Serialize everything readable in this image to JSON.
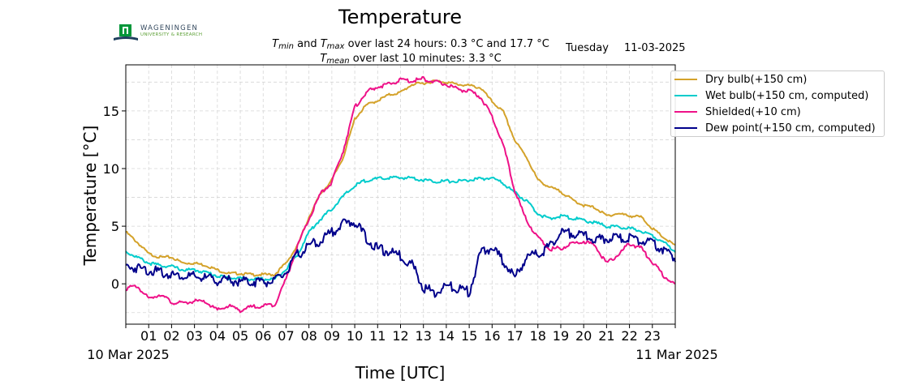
{
  "header": {
    "title": "Temperature",
    "stats_line1_min_label": "T",
    "stats_line1_min_sub": "min",
    "stats_line1_and": " and ",
    "stats_line1_max_label": "T",
    "stats_line1_max_sub": "max",
    "stats_line1_text": " over last 24 hours: 0.3 °C and 17.7 °C",
    "stats_line2_label": "T",
    "stats_line2_sub": "mean",
    "stats_line2_text": " over last 10 minutes: 3.3 °C",
    "weekday": "Tuesday",
    "date": "11-03-2025"
  },
  "logo": {
    "line1": "WAGENINGEN",
    "line2": "UNIVERSITY & RESEARCH",
    "icon": "wur-logo-icon",
    "colors": {
      "green": "#009639",
      "blue": "#1f3f5e"
    }
  },
  "chart_data": {
    "type": "line",
    "title": "Temperature",
    "xlabel": "Time [UTC]",
    "ylabel": "Temperature [°C]",
    "xlim": [
      0,
      24
    ],
    "ylim": [
      -3.5,
      19
    ],
    "yticks": [
      0,
      5,
      10,
      15
    ],
    "xtick_labels": [
      "01",
      "02",
      "03",
      "04",
      "05",
      "06",
      "07",
      "08",
      "09",
      "10",
      "11",
      "12",
      "13",
      "14",
      "15",
      "16",
      "17",
      "18",
      "19",
      "20",
      "21",
      "22",
      "23"
    ],
    "xdate_left": "10 Mar 2025",
    "xdate_right": "11 Mar 2025",
    "grid": true,
    "legend_position": "outside-top-right",
    "x": [
      0,
      0.5,
      1,
      1.5,
      2,
      2.5,
      3,
      3.5,
      4,
      4.5,
      5,
      5.5,
      6,
      6.5,
      7,
      7.5,
      8,
      8.5,
      9,
      9.5,
      10,
      10.5,
      11,
      11.5,
      12,
      12.5,
      13,
      13.5,
      14,
      14.5,
      15,
      15.5,
      16,
      16.5,
      17,
      17.5,
      18,
      18.5,
      19,
      19.5,
      20,
      20.5,
      21,
      21.5,
      22,
      22.5,
      23,
      23.5,
      24
    ],
    "series": [
      {
        "name": "Dry bulb(+150 cm)",
        "color": "#d4a22a",
        "values": [
          4.5,
          3.6,
          2.6,
          2.3,
          2.3,
          1.8,
          1.8,
          1.6,
          1.2,
          0.9,
          0.9,
          0.8,
          0.8,
          0.8,
          1.8,
          3.3,
          5.8,
          7.8,
          9.0,
          11.0,
          14.3,
          15.5,
          15.9,
          16.4,
          16.6,
          17.3,
          17.4,
          17.6,
          17.5,
          17.3,
          17.2,
          17.0,
          15.8,
          14.9,
          12.4,
          11.0,
          9.0,
          8.4,
          8.0,
          7.3,
          6.8,
          6.6,
          5.9,
          6.1,
          5.9,
          5.8,
          4.8,
          4.0,
          3.3
        ]
      },
      {
        "name": "Wet bulb(+150 cm, computed)",
        "color": "#00cccc",
        "values": [
          2.8,
          2.3,
          1.8,
          1.6,
          1.5,
          1.2,
          1.2,
          1.0,
          0.7,
          0.5,
          0.5,
          0.4,
          0.4,
          0.4,
          1.3,
          2.5,
          4.5,
          5.6,
          6.5,
          7.6,
          8.5,
          9.0,
          9.1,
          9.2,
          9.2,
          9.2,
          9.0,
          8.9,
          8.9,
          8.9,
          9.0,
          9.1,
          9.2,
          8.7,
          7.9,
          7.2,
          6.1,
          5.6,
          5.9,
          5.7,
          5.5,
          5.3,
          5.0,
          4.9,
          4.8,
          4.6,
          4.2,
          3.6,
          2.8
        ]
      },
      {
        "name": "Shielded(+10 cm)",
        "color": "#ee1188",
        "values": [
          -0.4,
          -0.2,
          -1.3,
          -0.9,
          -1.6,
          -1.7,
          -1.5,
          -1.6,
          -2.3,
          -1.9,
          -2.3,
          -2.0,
          -1.9,
          -1.8,
          0.4,
          3.3,
          5.6,
          7.8,
          8.8,
          11.6,
          15.3,
          16.6,
          17.1,
          17.3,
          17.7,
          17.6,
          17.8,
          17.5,
          17.3,
          16.9,
          16.7,
          16.2,
          14.5,
          12.0,
          8.0,
          5.5,
          4.0,
          3.0,
          3.1,
          3.5,
          3.7,
          3.3,
          1.8,
          2.5,
          3.5,
          3.1,
          1.9,
          0.7,
          -0.1
        ]
      },
      {
        "name": "Dew point(+150 cm, computed)",
        "color": "#00008b",
        "values": [
          1.5,
          1.4,
          1.2,
          1.0,
          0.8,
          0.7,
          0.6,
          0.5,
          0.3,
          0.3,
          0.2,
          0.2,
          0.2,
          0.2,
          1.0,
          2.5,
          3.3,
          3.7,
          4.5,
          5.2,
          5.4,
          4.0,
          3.0,
          2.8,
          2.4,
          1.7,
          -0.3,
          -0.8,
          -0.2,
          -0.4,
          -0.7,
          2.7,
          3.1,
          2.0,
          0.5,
          2.3,
          2.6,
          3.2,
          4.4,
          4.4,
          4.2,
          3.8,
          3.9,
          4.0,
          3.9,
          3.8,
          3.5,
          3.0,
          2.2
        ]
      }
    ]
  }
}
